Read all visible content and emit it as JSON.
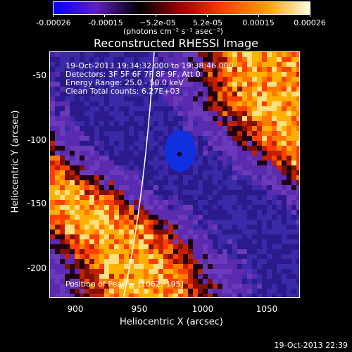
{
  "colorbar": {
    "tick_labels": [
      "-0.00026",
      "-0.00015",
      "−5.2e-05",
      "5.2e-05",
      "0.00015",
      "0.00026"
    ],
    "units": "(photons cm⁻² s⁻¹ asec⁻²)",
    "colors": [
      "#0000ff",
      "#6020c0",
      "#000000",
      "#a00000",
      "#ff4000",
      "#ffa000",
      "#ffffe0"
    ]
  },
  "plot": {
    "title": "Reconstructed RHESSI Image",
    "info": [
      "19-Oct-2013 19:34:32.000 to 19:38:46.000",
      "Detectors: 3F 5F 6F 7F 8F 9F, Att 0",
      "Energy Range: 25.0 - 50.0 keV",
      "Clean     Total counts: 6.27E+03"
    ],
    "peak": "Position of Peak = [1062,-195]",
    "x_label": "Heliocentric X (arcsec)",
    "y_label": "Heliocentric Y (arcsec)",
    "x_ticks": [
      "900",
      "950",
      "1000",
      "1050"
    ],
    "y_ticks": [
      "-50",
      "-100",
      "-150",
      "-200"
    ],
    "colors": {
      "background": "#5a2ab0",
      "limb": "#ffffff"
    }
  },
  "timestamp": "19-Oct-2013 22:39"
}
